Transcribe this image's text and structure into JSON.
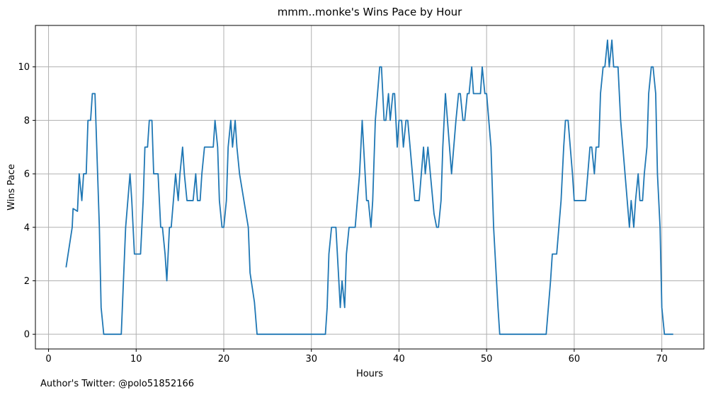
{
  "footer": {
    "credit": "Author's Twitter: @polo51852166"
  },
  "chart_data": {
    "type": "line",
    "title": "mmm..monke's Wins Pace by Hour",
    "xlabel": "Hours",
    "ylabel": "Wins Pace",
    "xlim": [
      -1.5,
      74.8
    ],
    "ylim": [
      -0.55,
      11.55
    ],
    "xticks": [
      0,
      10,
      20,
      30,
      40,
      50,
      60,
      70
    ],
    "yticks": [
      0,
      2,
      4,
      6,
      8,
      10
    ],
    "grid": true,
    "line_color": "#1f77b4",
    "series": [
      {
        "name": "Wins Pace",
        "points": [
          [
            2.0,
            2.5
          ],
          [
            2.7,
            4.0
          ],
          [
            2.8,
            4.7
          ],
          [
            3.3,
            4.6
          ],
          [
            3.5,
            6.0
          ],
          [
            3.8,
            5.0
          ],
          [
            4.0,
            6.0
          ],
          [
            4.3,
            6.0
          ],
          [
            4.5,
            8.0
          ],
          [
            4.8,
            8.0
          ],
          [
            5.0,
            9.0
          ],
          [
            5.3,
            9.0
          ],
          [
            5.5,
            7.0
          ],
          [
            5.8,
            4.0
          ],
          [
            6.0,
            1.0
          ],
          [
            6.3,
            0.0
          ],
          [
            8.3,
            0.0
          ],
          [
            8.8,
            4.0
          ],
          [
            9.3,
            6.0
          ],
          [
            9.5,
            5.0
          ],
          [
            9.8,
            3.0
          ],
          [
            10.5,
            3.0
          ],
          [
            10.8,
            5.0
          ],
          [
            11.0,
            7.0
          ],
          [
            11.3,
            7.0
          ],
          [
            11.5,
            8.0
          ],
          [
            11.8,
            8.0
          ],
          [
            12.0,
            6.0
          ],
          [
            12.5,
            6.0
          ],
          [
            12.8,
            4.0
          ],
          [
            13.0,
            4.0
          ],
          [
            13.3,
            3.0
          ],
          [
            13.5,
            2.0
          ],
          [
            13.8,
            4.0
          ],
          [
            14.0,
            4.0
          ],
          [
            14.5,
            6.0
          ],
          [
            14.8,
            5.0
          ],
          [
            15.0,
            6.0
          ],
          [
            15.3,
            7.0
          ],
          [
            15.5,
            6.0
          ],
          [
            15.8,
            5.0
          ],
          [
            16.5,
            5.0
          ],
          [
            16.8,
            6.0
          ],
          [
            17.0,
            5.0
          ],
          [
            17.3,
            5.0
          ],
          [
            17.5,
            6.0
          ],
          [
            17.8,
            7.0
          ],
          [
            18.8,
            7.0
          ],
          [
            19.0,
            8.0
          ],
          [
            19.3,
            7.0
          ],
          [
            19.5,
            5.0
          ],
          [
            19.8,
            4.0
          ],
          [
            20.0,
            4.0
          ],
          [
            20.3,
            5.0
          ],
          [
            20.5,
            7.0
          ],
          [
            20.8,
            8.0
          ],
          [
            21.0,
            7.0
          ],
          [
            21.3,
            8.0
          ],
          [
            21.5,
            7.0
          ],
          [
            21.8,
            6.0
          ],
          [
            22.8,
            4.0
          ],
          [
            23.0,
            2.3
          ],
          [
            23.5,
            1.2
          ],
          [
            23.8,
            0.0
          ],
          [
            31.6,
            0.0
          ],
          [
            31.8,
            1.0
          ],
          [
            32.0,
            3.0
          ],
          [
            32.3,
            4.0
          ],
          [
            32.8,
            4.0
          ],
          [
            33.3,
            1.0
          ],
          [
            33.5,
            2.0
          ],
          [
            33.8,
            1.0
          ],
          [
            34.0,
            3.0
          ],
          [
            34.3,
            4.0
          ],
          [
            35.0,
            4.0
          ],
          [
            35.5,
            6.0
          ],
          [
            35.8,
            8.0
          ],
          [
            36.3,
            5.0
          ],
          [
            36.5,
            5.0
          ],
          [
            36.8,
            4.0
          ],
          [
            37.0,
            5.0
          ],
          [
            37.3,
            8.0
          ],
          [
            37.8,
            10.0
          ],
          [
            38.0,
            10.0
          ],
          [
            38.3,
            8.0
          ],
          [
            38.5,
            8.0
          ],
          [
            38.8,
            9.0
          ],
          [
            39.0,
            8.0
          ],
          [
            39.3,
            9.0
          ],
          [
            39.5,
            9.0
          ],
          [
            39.8,
            7.0
          ],
          [
            40.0,
            8.0
          ],
          [
            40.3,
            8.0
          ],
          [
            40.5,
            7.0
          ],
          [
            40.8,
            8.0
          ],
          [
            41.0,
            8.0
          ],
          [
            41.8,
            5.0
          ],
          [
            42.3,
            5.0
          ],
          [
            42.8,
            7.0
          ],
          [
            43.0,
            6.0
          ],
          [
            43.3,
            7.0
          ],
          [
            44.0,
            4.5
          ],
          [
            44.3,
            4.0
          ],
          [
            44.5,
            4.0
          ],
          [
            44.8,
            5.0
          ],
          [
            45.0,
            7.0
          ],
          [
            45.3,
            9.0
          ],
          [
            46.0,
            6.0
          ],
          [
            46.5,
            8.0
          ],
          [
            46.8,
            9.0
          ],
          [
            47.0,
            9.0
          ],
          [
            47.3,
            8.0
          ],
          [
            47.5,
            8.0
          ],
          [
            47.8,
            9.0
          ],
          [
            48.0,
            9.0
          ],
          [
            48.3,
            10.0
          ],
          [
            48.5,
            9.0
          ],
          [
            49.3,
            9.0
          ],
          [
            49.5,
            10.0
          ],
          [
            49.8,
            9.0
          ],
          [
            50.0,
            9.0
          ],
          [
            50.5,
            7.0
          ],
          [
            50.8,
            4.0
          ],
          [
            51.3,
            1.0
          ],
          [
            51.5,
            0.0
          ],
          [
            56.8,
            0.0
          ],
          [
            57.3,
            2.0
          ],
          [
            57.5,
            3.0
          ],
          [
            58.0,
            3.0
          ],
          [
            58.5,
            5.0
          ],
          [
            58.8,
            7.0
          ],
          [
            59.0,
            8.0
          ],
          [
            59.3,
            8.0
          ],
          [
            59.8,
            6.0
          ],
          [
            60.0,
            5.0
          ],
          [
            61.3,
            5.0
          ],
          [
            61.8,
            7.0
          ],
          [
            62.0,
            7.0
          ],
          [
            62.3,
            6.0
          ],
          [
            62.5,
            7.0
          ],
          [
            62.8,
            7.0
          ],
          [
            63.0,
            9.0
          ],
          [
            63.3,
            10.0
          ],
          [
            63.5,
            10.0
          ],
          [
            63.8,
            11.0
          ],
          [
            64.0,
            10.0
          ],
          [
            64.3,
            11.0
          ],
          [
            64.5,
            10.0
          ],
          [
            64.8,
            10.0
          ],
          [
            65.0,
            10.0
          ],
          [
            65.3,
            8.0
          ],
          [
            65.8,
            6.0
          ],
          [
            66.3,
            4.0
          ],
          [
            66.5,
            5.0
          ],
          [
            66.8,
            4.0
          ],
          [
            67.0,
            5.0
          ],
          [
            67.3,
            6.0
          ],
          [
            67.5,
            5.0
          ],
          [
            67.8,
            5.0
          ],
          [
            68.0,
            6.0
          ],
          [
            68.3,
            7.0
          ],
          [
            68.5,
            9.0
          ],
          [
            68.8,
            10.0
          ],
          [
            69.0,
            10.0
          ],
          [
            69.3,
            9.0
          ],
          [
            69.5,
            6.0
          ],
          [
            69.8,
            4.0
          ],
          [
            70.0,
            1.0
          ],
          [
            70.3,
            0.0
          ],
          [
            71.3,
            0.0
          ]
        ]
      }
    ]
  }
}
